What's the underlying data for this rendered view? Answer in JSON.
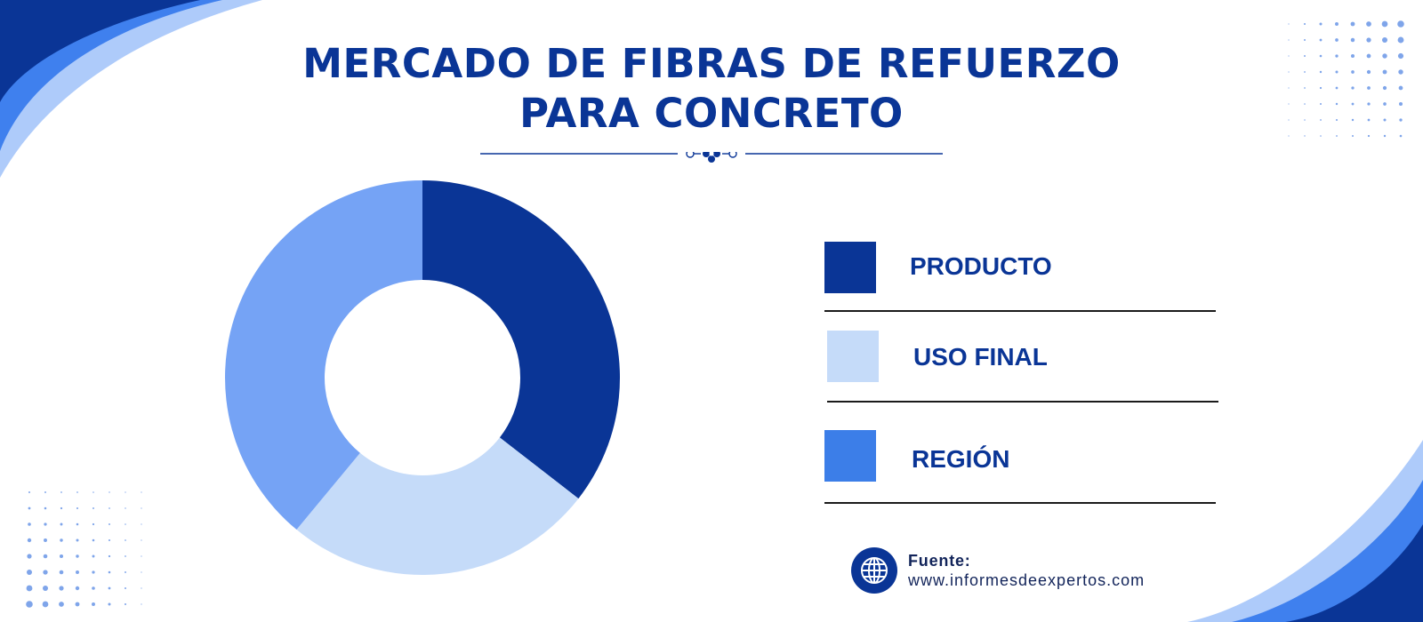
{
  "title": {
    "line1": "MERCADO DE FIBRAS DE REFUERZO",
    "line2": "PARA CONCRETO"
  },
  "colors": {
    "dark_blue": "#0a3596",
    "light_blue": "#c5dbf9",
    "mid_blue": "#3c7ee8",
    "donut_third": "#75a3f5",
    "rule": "#1a1a1a"
  },
  "chart_data": {
    "type": "pie",
    "style": "donut",
    "categories": [
      "PRODUCTO",
      "USO FINAL",
      "REGIÓN"
    ],
    "values": [
      35.5,
      25.5,
      39
    ],
    "unit": "%",
    "legend_position": "right"
  },
  "legend": {
    "items": [
      {
        "label": "PRODUCTO",
        "color": "#0a3596"
      },
      {
        "label": "USO FINAL",
        "color": "#c5dbf9"
      },
      {
        "label": "REGIÓN",
        "color": "#3c7ee8"
      }
    ]
  },
  "source": {
    "icon": "globe-icon",
    "label": "Fuente:",
    "url": "www.informesdeexpertos.com"
  }
}
